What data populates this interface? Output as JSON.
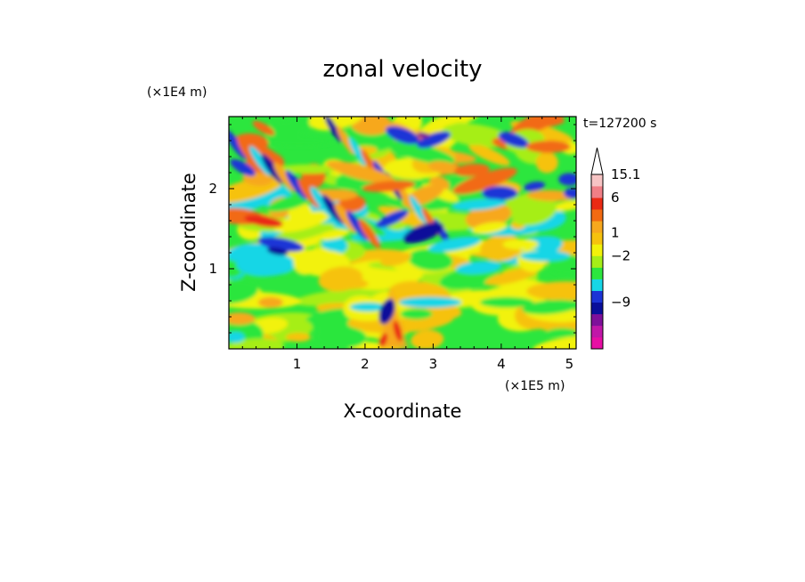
{
  "chart_data": {
    "type": "heatmap",
    "title": "zonal velocity",
    "xlabel": "X-coordinate",
    "ylabel": "Z-coordinate",
    "x_unit": "(×1E5 m)",
    "y_unit": "(×1E4 m)",
    "time_label": "t=127200 s",
    "xlim": [
      0,
      5.1
    ],
    "ylim": [
      0,
      2.9
    ],
    "x_ticks": [
      "1",
      "2",
      "3",
      "4",
      "5"
    ],
    "y_ticks": [
      "1",
      "2"
    ],
    "colorbar": {
      "labels": [
        "15.1",
        "6",
        "1",
        "−2",
        "−9"
      ],
      "levels": [
        {
          "color": "#e70ea4"
        },
        {
          "color": "#c017a8"
        },
        {
          "color": "#7e109a"
        },
        {
          "color": "#0a0f9a"
        },
        {
          "color": "#1c34d6"
        },
        {
          "color": "#16d6e6"
        },
        {
          "color": "#2ce63e"
        },
        {
          "color": "#a6ee18"
        },
        {
          "color": "#f2f20a"
        },
        {
          "color": "#f6c20e"
        },
        {
          "color": "#f7a81e"
        },
        {
          "color": "#f26a12"
        },
        {
          "color": "#ea2a14"
        },
        {
          "color": "#f07f86"
        },
        {
          "color": "#f7c4c4"
        }
      ]
    }
  }
}
